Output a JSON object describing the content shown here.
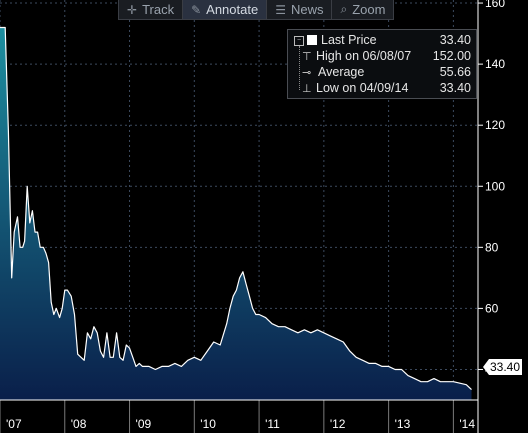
{
  "toolbar": {
    "items": [
      {
        "label": "Track",
        "icon": "crosshair-icon",
        "active": false
      },
      {
        "label": "Annotate",
        "icon": "pencil-icon",
        "active": true
      },
      {
        "label": "News",
        "icon": "news-icon",
        "active": false
      },
      {
        "label": "Zoom",
        "icon": "magnifier-icon",
        "active": false
      }
    ]
  },
  "legend": {
    "last_price_label": "Last Price",
    "last_price_value": "33.40",
    "high_label": "High on 06/08/07",
    "high_value": "152.00",
    "average_label": "Average",
    "average_value": "55.66",
    "low_label": "Low on 04/09/14",
    "low_value": "33.40"
  },
  "price_tag": "33.40",
  "colors": {
    "background": "#000000",
    "line": "#ffffff",
    "area_top": "#1d8fa0",
    "area_bottom": "#0a1f4a",
    "grid": "#3c4a5e",
    "axis_text": "#ffffff"
  },
  "chart_data": {
    "type": "area",
    "title": "",
    "xlabel": "",
    "ylabel": "",
    "ylim": [
      30,
      161
    ],
    "xlim": [
      2007.0,
      2014.38
    ],
    "y_ticks": [
      40,
      60,
      80,
      100,
      120,
      140,
      160
    ],
    "y_tick_labels": [
      "40",
      "60",
      "80",
      "100",
      "120",
      "140",
      "160"
    ],
    "x_ticks": [
      2007.0,
      2008.0,
      2009.0,
      2010.0,
      2011.0,
      2012.0,
      2013.0,
      2014.0
    ],
    "x_tick_labels": [
      "'07",
      "'08",
      "'09",
      "'10",
      "'11",
      "'12",
      "'13",
      "'14"
    ],
    "grid": true,
    "legend_position": "top-right",
    "series": [
      {
        "name": "Last Price",
        "x": [
          2007.0,
          2007.05,
          2007.08,
          2007.13,
          2007.18,
          2007.22,
          2007.27,
          2007.31,
          2007.35,
          2007.38,
          2007.42,
          2007.46,
          2007.5,
          2007.54,
          2007.58,
          2007.62,
          2007.67,
          2007.71,
          2007.75,
          2007.79,
          2007.83,
          2007.87,
          2007.92,
          2007.96,
          2008.0,
          2008.04,
          2008.1,
          2008.15,
          2008.2,
          2008.25,
          2008.3,
          2008.35,
          2008.4,
          2008.45,
          2008.5,
          2008.55,
          2008.6,
          2008.65,
          2008.7,
          2008.75,
          2008.8,
          2008.85,
          2008.9,
          2008.95,
          2009.0,
          2009.05,
          2009.1,
          2009.15,
          2009.2,
          2009.3,
          2009.4,
          2009.5,
          2009.6,
          2009.7,
          2009.8,
          2009.9,
          2010.0,
          2010.1,
          2010.2,
          2010.3,
          2010.4,
          2010.5,
          2010.55,
          2010.6,
          2010.65,
          2010.7,
          2010.75,
          2010.8,
          2010.85,
          2010.9,
          2010.95,
          2011.0,
          2011.1,
          2011.2,
          2011.3,
          2011.4,
          2011.5,
          2011.6,
          2011.7,
          2011.8,
          2011.9,
          2012.0,
          2012.1,
          2012.2,
          2012.3,
          2012.4,
          2012.5,
          2012.6,
          2012.7,
          2012.8,
          2012.9,
          2013.0,
          2013.1,
          2013.2,
          2013.3,
          2013.4,
          2013.5,
          2013.6,
          2013.7,
          2013.8,
          2013.9,
          2014.0,
          2014.1,
          2014.2,
          2014.28
        ],
        "values": [
          152.0,
          152.0,
          152.0,
          118.0,
          70.0,
          85.0,
          90.0,
          80.0,
          80.0,
          82.0,
          100.0,
          88.0,
          92.0,
          85.0,
          85.0,
          80.0,
          80.0,
          78.0,
          75.0,
          62.0,
          58.0,
          60.0,
          57.0,
          60.0,
          66.0,
          66.0,
          64.0,
          58.0,
          45.0,
          44.0,
          43.0,
          52.0,
          50.0,
          54.0,
          52.0,
          46.0,
          44.0,
          52.0,
          44.0,
          44.0,
          52.0,
          44.0,
          43.0,
          48.0,
          47.0,
          44.0,
          41.0,
          42.0,
          41.0,
          41.0,
          40.0,
          41.0,
          41.0,
          42.0,
          41.0,
          43.0,
          44.0,
          43.0,
          46.0,
          49.0,
          48.0,
          55.0,
          60.0,
          64.0,
          66.0,
          70.0,
          72.0,
          68.0,
          64.0,
          60.0,
          58.0,
          58.0,
          57.0,
          55.0,
          54.0,
          54.0,
          53.0,
          52.0,
          53.0,
          52.0,
          53.0,
          52.0,
          51.0,
          50.0,
          49.0,
          46.0,
          44.0,
          43.0,
          42.0,
          42.0,
          41.0,
          41.0,
          40.0,
          40.0,
          38.0,
          37.0,
          36.0,
          36.0,
          37.0,
          36.0,
          36.0,
          36.0,
          35.5,
          35.0,
          33.4
        ]
      }
    ]
  }
}
